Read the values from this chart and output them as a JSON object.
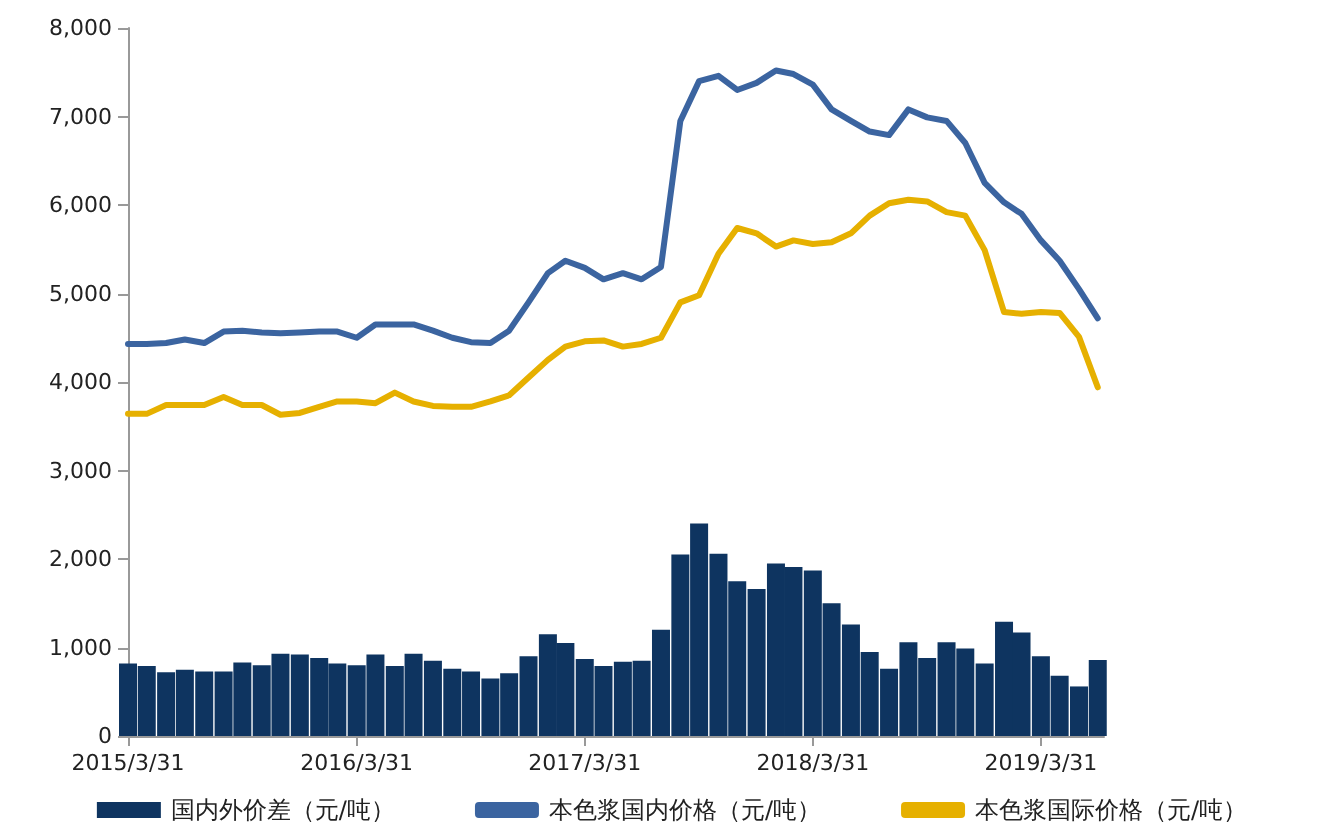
{
  "chart_data": {
    "type": "bar",
    "x": [
      "2015-03-31",
      "2015-04-30",
      "2015-05-31",
      "2015-06-30",
      "2015-07-31",
      "2015-08-31",
      "2015-09-30",
      "2015-10-31",
      "2015-11-30",
      "2015-12-31",
      "2016-01-31",
      "2016-02-29",
      "2016-03-31",
      "2016-04-30",
      "2016-05-31",
      "2016-06-30",
      "2016-07-31",
      "2016-08-31",
      "2016-09-30",
      "2016-10-31",
      "2016-11-30",
      "2016-12-31",
      "2017-01-31",
      "2017-02-28",
      "2017-03-31",
      "2017-04-30",
      "2017-05-31",
      "2017-06-30",
      "2017-07-31",
      "2017-08-31",
      "2017-09-30",
      "2017-10-31",
      "2017-11-30",
      "2017-12-31",
      "2018-01-31",
      "2018-02-28",
      "2018-03-31",
      "2018-04-30",
      "2018-05-31",
      "2018-06-30",
      "2018-07-31",
      "2018-08-31",
      "2018-09-30",
      "2018-10-31",
      "2018-11-30",
      "2018-12-31",
      "2019-01-31",
      "2019-02-28",
      "2019-03-31",
      "2019-04-30",
      "2019-05-31",
      "2019-06-30"
    ],
    "series": [
      {
        "name": "国内外价差（元/吨）",
        "color": "#0e3460",
        "values": [
          820,
          790,
          720,
          750,
          730,
          730,
          830,
          800,
          930,
          920,
          880,
          820,
          800,
          920,
          790,
          930,
          850,
          760,
          730,
          650,
          710,
          900,
          1150,
          1050,
          870,
          790,
          840,
          850,
          1200,
          2050,
          2400,
          2060,
          1750,
          1660,
          1950,
          1910,
          1870,
          1500,
          1260,
          950,
          760,
          1060,
          880,
          1060,
          990,
          820,
          1290,
          1170,
          900,
          680,
          560,
          860
        ]
      },
      {
        "name": "本色浆国内价格（元/吨）",
        "type": "line",
        "color": "#3b64a0",
        "values": [
          4430,
          4430,
          4440,
          4480,
          4440,
          4570,
          4580,
          4560,
          4550,
          4560,
          4570,
          4570,
          4500,
          4650,
          4650,
          4650,
          4580,
          4500,
          4450,
          4440,
          4580,
          4900,
          5230,
          5370,
          5290,
          5160,
          5230,
          5160,
          5300,
          6950,
          7400,
          7460,
          7300,
          7380,
          7520,
          7480,
          7360,
          7080,
          6950,
          6830,
          6790,
          7080,
          6990,
          6950,
          6700,
          6250,
          6030,
          5900,
          5600,
          5370,
          5050,
          4720
        ]
      },
      {
        "name": "本色浆国际价格（元/吨）",
        "type": "line",
        "color": "#e6b000",
        "values": [
          3640,
          3640,
          3740,
          3740,
          3740,
          3830,
          3740,
          3740,
          3630,
          3650,
          3720,
          3780,
          3780,
          3760,
          3880,
          3780,
          3730,
          3720,
          3720,
          3780,
          3850,
          4050,
          4250,
          4400,
          4460,
          4470,
          4400,
          4430,
          4500,
          4900,
          4980,
          5450,
          5740,
          5680,
          5530,
          5600,
          5560,
          5580,
          5680,
          5880,
          6020,
          6060,
          6040,
          5920,
          5880,
          5490,
          4790,
          4770,
          4790,
          4780,
          4510,
          3940
        ]
      }
    ],
    "xlim": [
      "2015-03-31",
      "2019-07-10"
    ],
    "xticks": [
      {
        "value": "2015-03-31",
        "label": "2015/3/31"
      },
      {
        "value": "2016-03-31",
        "label": "2016/3/31"
      },
      {
        "value": "2017-03-31",
        "label": "2017/3/31"
      },
      {
        "value": "2018-03-31",
        "label": "2018/3/31"
      },
      {
        "value": "2019-03-31",
        "label": "2019/3/31"
      }
    ],
    "ylim": [
      0,
      8000
    ],
    "yticks": [
      {
        "value": 0,
        "label": "0"
      },
      {
        "value": 1000,
        "label": "1,000"
      },
      {
        "value": 2000,
        "label": "2,000"
      },
      {
        "value": 3000,
        "label": "3,000"
      },
      {
        "value": 4000,
        "label": "4,000"
      },
      {
        "value": 5000,
        "label": "5,000"
      },
      {
        "value": 6000,
        "label": "6,000"
      },
      {
        "value": 7000,
        "label": "7,000"
      },
      {
        "value": 8000,
        "label": "8,000"
      }
    ],
    "grid": false,
    "legend": "bottom",
    "marker": "none",
    "line_style": "solid"
  }
}
